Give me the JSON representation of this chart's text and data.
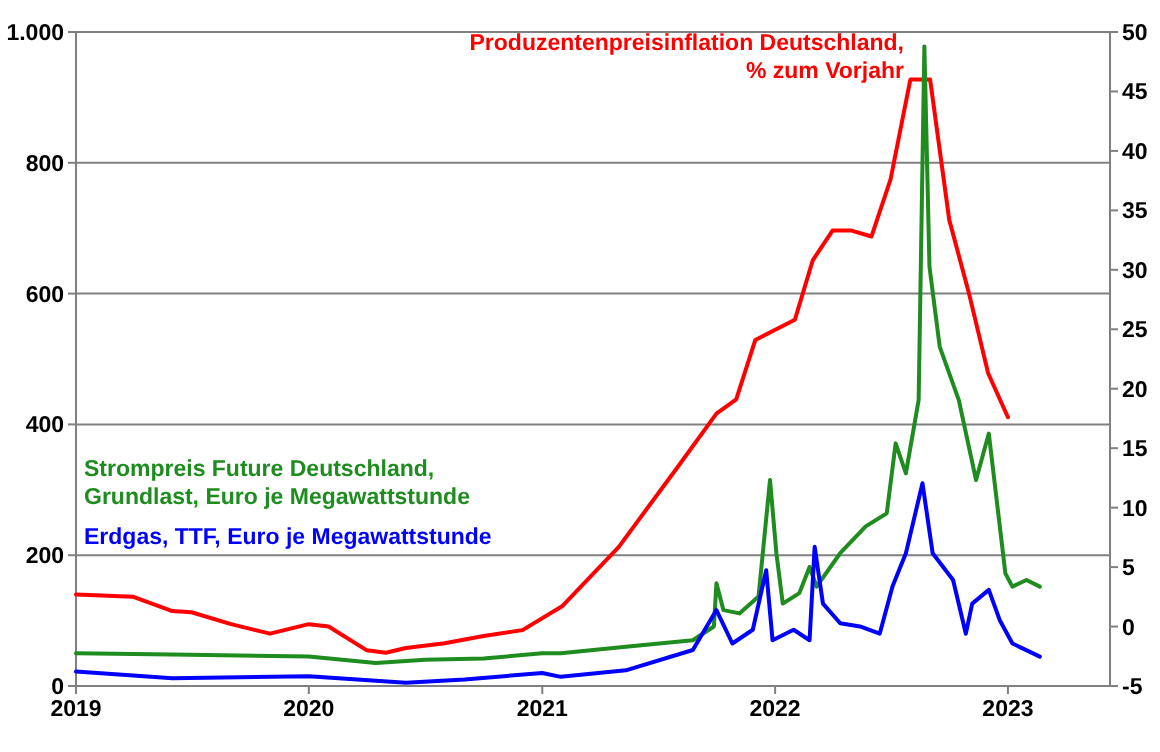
{
  "chart_data": {
    "type": "line",
    "xlim": [
      "2019",
      "2023-06-10"
    ],
    "xticks": [
      "2019",
      "2020",
      "2021",
      "2022",
      "2023"
    ],
    "ylim": [
      0,
      1000
    ],
    "yticks": [
      0,
      200,
      400,
      600,
      800,
      {
        "value": 1000,
        "label": "1.000"
      }
    ],
    "y2lim": [
      -5,
      50
    ],
    "y2ticks": [
      -5,
      0,
      5,
      10,
      15,
      20,
      25,
      30,
      35,
      40,
      45,
      50
    ],
    "grid": "y",
    "legend": false,
    "marker": "none",
    "line_style": "solid",
    "series": [
      {
        "name": "Produzentenpreisinflation Deutschland, % zum Vorjahr",
        "color": "#ff0000",
        "axis": "y2",
        "x": [
          "2019-01",
          "2019-04",
          "2019-06",
          "2019-07",
          "2019-09",
          "2019-11",
          "2020-01",
          "2020-02",
          "2020-04",
          "2020-05",
          "2020-06",
          "2020-08",
          "2020-10",
          "2020-12",
          "2021-02",
          "2021-05",
          "2021-08",
          "2021-10",
          "2021-11",
          "2021-12",
          "2022-02",
          "2022-03",
          "2022-04",
          "2022-05",
          "2022-06",
          "2022-07",
          "2022-08",
          "2022-09",
          "2022-10",
          "2022-11",
          "2022-12",
          "2023-01"
        ],
        "values": [
          2.7,
          2.5,
          1.3,
          1.2,
          0.2,
          -0.6,
          0.2,
          0,
          -2,
          -2.2,
          -1.8,
          -1.4,
          -0.8,
          -0.3,
          1.7,
          6.7,
          13.4,
          17.9,
          19.1,
          24.1,
          25.8,
          30.8,
          33.3,
          33.3,
          32.8,
          37.6,
          46,
          46,
          34.2,
          28,
          21.3,
          17.6
        ]
      },
      {
        "name": "Strompreis Future Deutschland, Grundlast, Euro je Megawattstunde",
        "color": "#1e8c1e",
        "x": [
          "2019-01-01",
          "2019-06-01",
          "2020-01-01",
          "2020-04-15",
          "2020-07-01",
          "2020-10-01",
          "2021-01-01",
          "2021-01-30",
          "2021-05-12",
          "2021-08-25",
          "2021-09-27",
          "2021-10-01",
          "2021-10-12",
          "2021-11-06",
          "2021-12-06",
          "2021-12-24",
          "2022-01-03",
          "2022-01-13",
          "2022-02-08",
          "2022-02-24",
          "2022-03-07",
          "2022-04-13",
          "2022-05-23",
          "2022-06-25",
          "2022-07-09",
          "2022-07-25",
          "2022-08-14",
          "2022-08-23",
          "2022-08-31",
          "2022-09-16",
          "2022-10-16",
          "2022-11-12",
          "2022-12-02",
          "2022-12-28",
          "2023-01-08",
          "2023-01-30",
          "2023-02-20"
        ],
        "values": [
          50,
          48,
          45,
          35,
          40,
          42,
          50,
          50,
          60,
          70,
          91,
          157,
          116,
          111,
          137,
          315,
          203,
          126,
          142,
          182,
          152,
          203,
          244,
          264,
          371,
          325,
          437,
          978,
          641,
          519,
          437,
          315,
          386,
          172,
          152,
          162,
          152
        ]
      },
      {
        "name": "Erdgas, TTF, Euro je Megawattstunde",
        "color": "#0000ff",
        "x": [
          "2019-01-01",
          "2019-06-01",
          "2020-01-01",
          "2020-06-01",
          "2020-09-01",
          "2021-01-01",
          "2021-01-30",
          "2021-05-12",
          "2021-08-25",
          "2021-10-01",
          "2021-10-26",
          "2021-11-27",
          "2021-12-18",
          "2021-12-28",
          "2022-01-30",
          "2022-02-24",
          "2022-03-04",
          "2022-03-17",
          "2022-04-13",
          "2022-05-14",
          "2022-06-14",
          "2022-07-04",
          "2022-07-25",
          "2022-08-20",
          "2022-09-05",
          "2022-10-07",
          "2022-10-27",
          "2022-11-06",
          "2022-12-02",
          "2022-12-19",
          "2023-01-08",
          "2023-02-20"
        ],
        "values": [
          22,
          12,
          15,
          5,
          10,
          20,
          14,
          24,
          55,
          116,
          65,
          86,
          177,
          70,
          86,
          70,
          213,
          126,
          96,
          91,
          80,
          152,
          203,
          310,
          203,
          162,
          80,
          126,
          147,
          101,
          65,
          45
        ]
      }
    ]
  }
}
